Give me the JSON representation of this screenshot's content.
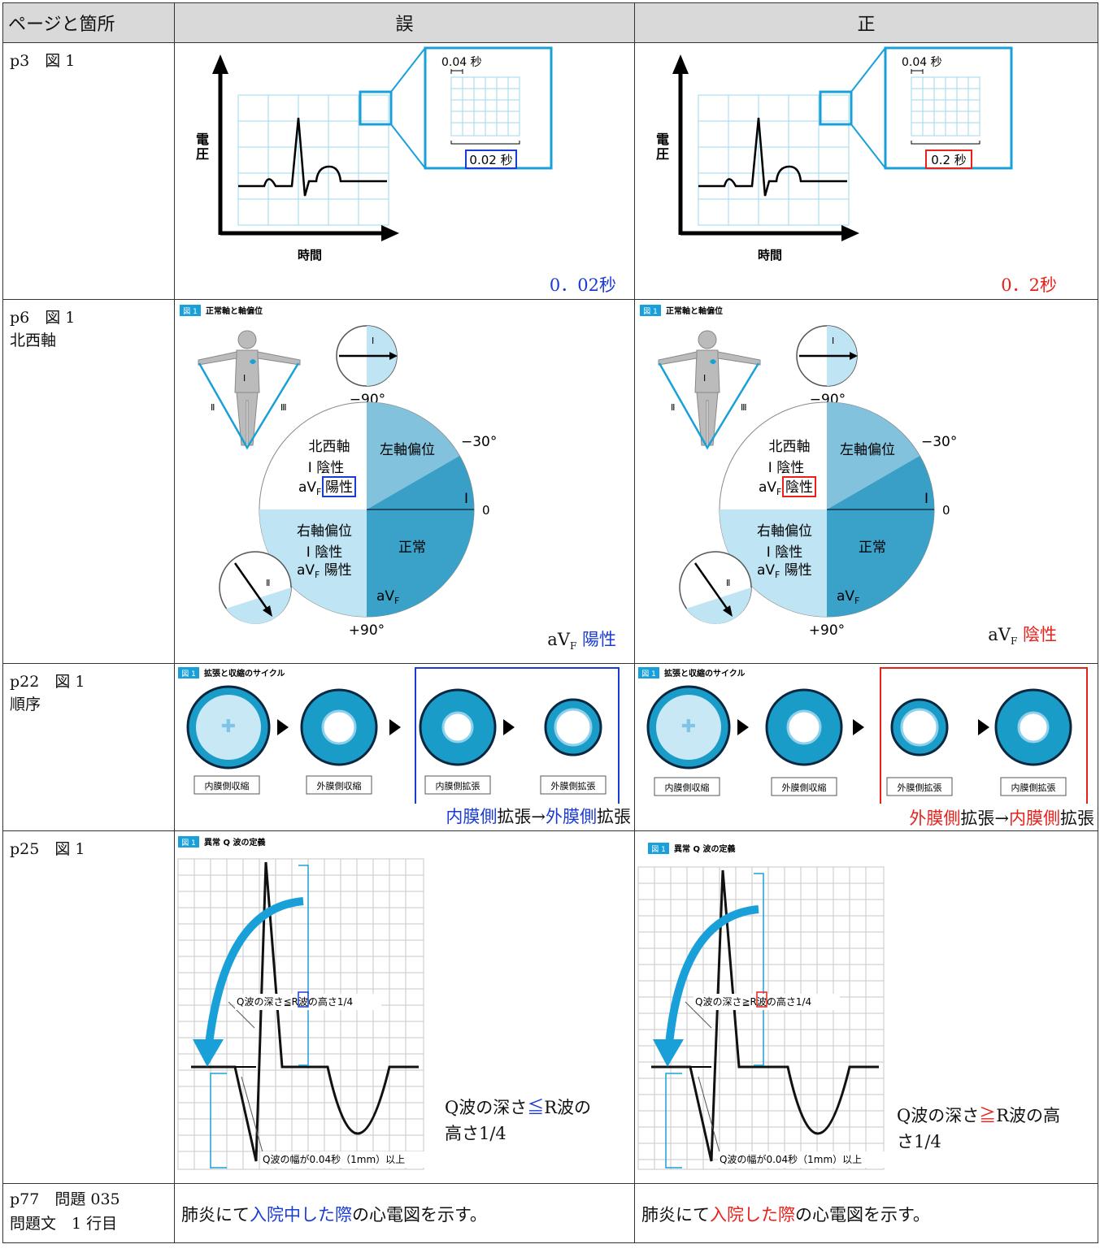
{
  "headers": {
    "location": "ページと箇所",
    "wrong": "誤",
    "correct": "正"
  },
  "rows": [
    {
      "loc": [
        "p3　図 1"
      ],
      "wrong": {
        "caption": "0．02秒",
        "box_label": "0.02 秒"
      },
      "correct": {
        "caption": "0．2秒",
        "box_label": "0.2 秒"
      }
    },
    {
      "loc": [
        "p6　図 1",
        "北西軸"
      ],
      "wrong": {
        "caption_a": "aV",
        "caption_sub": "F",
        "caption_b": " 陽性",
        "boxed": "陽性"
      },
      "correct": {
        "caption_a": "aV",
        "caption_sub": "F",
        "caption_b": " 陰性",
        "boxed": "陰性"
      }
    },
    {
      "loc": [
        "p22　図 1",
        "順序"
      ],
      "wrong": {
        "caption": [
          "内膜側",
          "拡張→",
          "外膜側",
          "拡張"
        ],
        "labels": [
          "内膜側収縮",
          "外膜側収縮",
          "内膜側拡張",
          "外膜側拡張"
        ]
      },
      "correct": {
        "caption": [
          "外膜側",
          "拡張→",
          "内膜側",
          "拡張"
        ],
        "labels": [
          "内膜側収縮",
          "外膜側収縮",
          "外膜側拡張",
          "内膜側拡張"
        ]
      }
    },
    {
      "loc": [
        "p25　図 1"
      ],
      "wrong": {
        "line1": [
          "Q波の深さ",
          "≦",
          "R波の"
        ],
        "line2": "高さ1/4",
        "sym": "≦"
      },
      "correct": {
        "line1": [
          "Q波の深さ",
          "≧",
          "R波の高"
        ],
        "line2": "さ1/4",
        "sym": "≧"
      }
    },
    {
      "loc": [
        "p77　問題 035",
        "問題文　1 行目"
      ],
      "wrong": {
        "text": [
          "肺炎にて",
          "入院中した際",
          "の心電図を示す。"
        ]
      },
      "correct": {
        "text": [
          "肺炎にて",
          "入院した際",
          "の心電図を示す。"
        ]
      }
    }
  ],
  "fig": {
    "ecg_y": "電圧",
    "ecg_y1": "電",
    "ecg_y2": "圧",
    "ecg_x": "時間",
    "zoom_top": "0.04 秒",
    "axis_title": "図 1",
    "axis_title_text": "正常軸と軸偏位",
    "nw_axis": "北西軸",
    "i_neg": "Ⅰ 陰性",
    "left_dev": "左軸偏位",
    "right_dev": "右軸偏位",
    "normal": "正常",
    "avf_pos": "陽性",
    "deg_m90": "−90°",
    "deg_m30": "−30°",
    "deg_0": "0",
    "deg_p90": "+90°",
    "lead_i": "Ⅰ",
    "lead_ii": "Ⅱ",
    "lead_iii": "Ⅲ",
    "cycle_title": "拡張と収縮のサイクル",
    "q_title": "異常 Q 波の定義",
    "q_depth_a": "Q波の深さ",
    "q_depth_b": "R波の高さ1/4",
    "q_width": "Q波の幅が0.04秒（1mm）以上",
    "fig_badge": "図 1"
  },
  "colors": {
    "blue": "#1a3bd4",
    "red": "#e8211b",
    "cyan": "#1aa0d8",
    "dark": "#1e8cb0"
  }
}
